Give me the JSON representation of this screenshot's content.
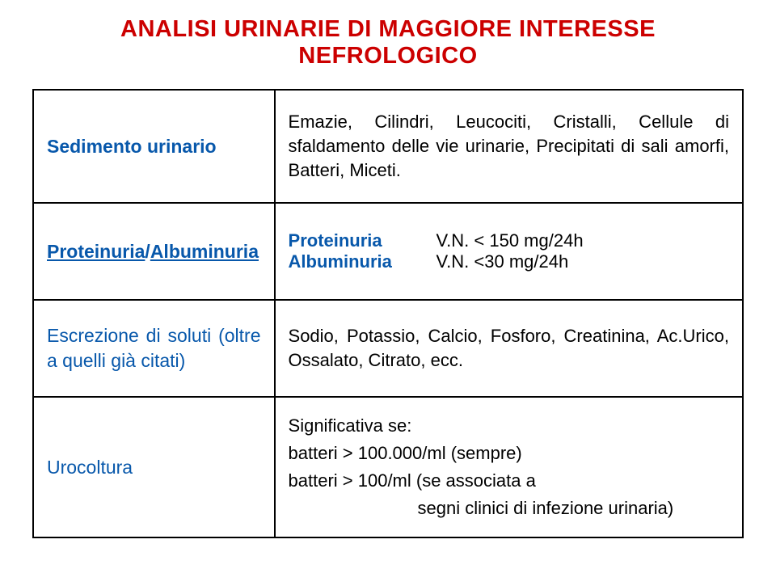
{
  "colors": {
    "title": "#cc0000",
    "label_blue": "#0858ab",
    "link_blue": "#0858ab",
    "bold_blue": "#0858ab",
    "urocoltura": "#0858ab",
    "body_text": "#000000"
  },
  "fonts": {
    "title_size": 29,
    "label_size": 23,
    "body_size": 22
  },
  "title": {
    "line1": "ANALISI URINARIE DI MAGGIORE INTERESSE",
    "line2": "NEFROLOGICO"
  },
  "rows": {
    "0": {
      "label": "Sedimento urinario",
      "text": "Emazie, Cilindri, Leucociti, Cristalli, Cellule di sfaldamento delle vie urinarie, Precipitati di sali amorfi, Batteri, Miceti."
    },
    "1": {
      "label_part1": "Proteinuria",
      "label_sep": "/",
      "label_part2": "Albuminuria",
      "p_name": "Proteinuria",
      "p_val": "V.N.  < 150 mg/24h",
      "a_name": "Albuminuria",
      "a_val": "V.N.  <30 mg/24h"
    },
    "2": {
      "label": "Escrezione di soluti (oltre a quelli già citati)",
      "text": "Sodio, Potassio, Calcio, Fosforo, Creatinina, Ac.Urico, Ossalato, Citrato, ecc."
    },
    "3": {
      "label": "Urocoltura",
      "line1": "Significativa se:",
      "line2": "batteri > 100.000/ml  (sempre)",
      "line3": "batteri >  100/ml (se associata a",
      "line4": "segni clinici di infezione urinaria)"
    }
  }
}
